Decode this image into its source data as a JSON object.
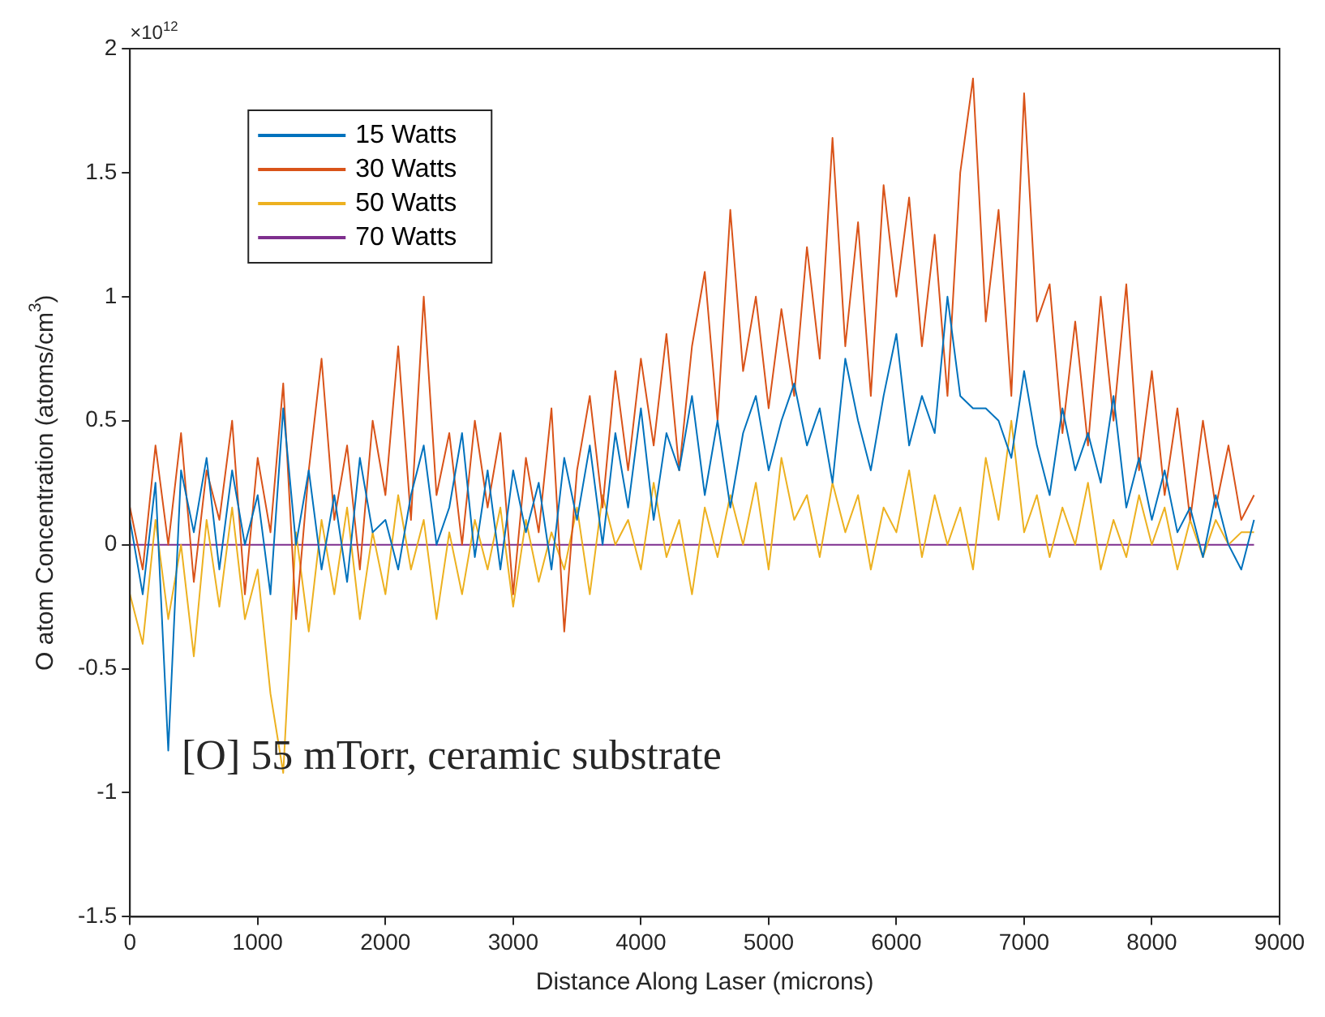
{
  "chart_data": {
    "type": "line",
    "xlabel": "Distance Along Laser (microns)",
    "ylabel": "O atom Concentration (atoms/cm$^{3}$)",
    "annotations": [
      "×10$^{12}$",
      "[O] 55 mTorr, ceramic substrate"
    ],
    "x": [
      0,
      100,
      200,
      300,
      400,
      500,
      600,
      700,
      800,
      900,
      1000,
      1100,
      1200,
      1300,
      1400,
      1500,
      1600,
      1700,
      1800,
      1900,
      2000,
      2100,
      2200,
      2300,
      2400,
      2500,
      2600,
      2700,
      2800,
      2900,
      3000,
      3100,
      3200,
      3300,
      3400,
      3500,
      3600,
      3700,
      3800,
      3900,
      4000,
      4100,
      4200,
      4300,
      4400,
      4500,
      4600,
      4700,
      4800,
      4900,
      5000,
      5100,
      5200,
      5300,
      5400,
      5500,
      5600,
      5700,
      5800,
      5900,
      6000,
      6100,
      6200,
      6300,
      6400,
      6500,
      6600,
      6700,
      6800,
      6900,
      7000,
      7100,
      7200,
      7300,
      7400,
      7500,
      7600,
      7700,
      7800,
      7900,
      8000,
      8100,
      8200,
      8300,
      8400,
      8500,
      8600,
      8700,
      8800
    ],
    "series": [
      {
        "name": "15 Watts",
        "color": "#0072bd",
        "values": [
          0.1,
          -0.2,
          0.25,
          -0.83,
          0.3,
          0.05,
          0.35,
          -0.1,
          0.3,
          0.0,
          0.2,
          -0.2,
          0.55,
          0.0,
          0.3,
          -0.1,
          0.2,
          -0.15,
          0.35,
          0.05,
          0.1,
          -0.1,
          0.2,
          0.4,
          0.0,
          0.15,
          0.45,
          -0.05,
          0.3,
          -0.1,
          0.3,
          0.05,
          0.25,
          -0.1,
          0.35,
          0.1,
          0.4,
          0.0,
          0.45,
          0.15,
          0.55,
          0.1,
          0.45,
          0.3,
          0.6,
          0.2,
          0.5,
          0.15,
          0.45,
          0.6,
          0.3,
          0.5,
          0.65,
          0.4,
          0.55,
          0.25,
          0.75,
          0.5,
          0.3,
          0.6,
          0.85,
          0.4,
          0.6,
          0.45,
          1.0,
          0.6,
          0.55,
          0.55,
          0.5,
          0.35,
          0.7,
          0.4,
          0.2,
          0.55,
          0.3,
          0.45,
          0.25,
          0.6,
          0.15,
          0.35,
          0.1,
          0.3,
          0.05,
          0.15,
          -0.05,
          0.2,
          0.0,
          -0.1,
          0.1
        ]
      },
      {
        "name": "30 Watts",
        "color": "#d95319",
        "values": [
          0.15,
          -0.1,
          0.4,
          0.0,
          0.45,
          -0.15,
          0.3,
          0.1,
          0.5,
          -0.2,
          0.35,
          0.05,
          0.65,
          -0.3,
          0.3,
          0.75,
          0.1,
          0.4,
          -0.1,
          0.5,
          0.2,
          0.8,
          0.1,
          1.0,
          0.2,
          0.45,
          0.0,
          0.5,
          0.15,
          0.45,
          -0.2,
          0.35,
          0.05,
          0.55,
          -0.35,
          0.3,
          0.6,
          0.15,
          0.7,
          0.3,
          0.75,
          0.4,
          0.85,
          0.3,
          0.8,
          1.1,
          0.5,
          1.35,
          0.7,
          1.0,
          0.55,
          0.95,
          0.6,
          1.2,
          0.75,
          1.64,
          0.8,
          1.3,
          0.6,
          1.45,
          1.0,
          1.4,
          0.8,
          1.25,
          0.6,
          1.5,
          1.88,
          0.9,
          1.35,
          0.6,
          1.82,
          0.9,
          1.05,
          0.45,
          0.9,
          0.4,
          1.0,
          0.5,
          1.05,
          0.3,
          0.7,
          0.2,
          0.55,
          0.1,
          0.5,
          0.15,
          0.4,
          0.1,
          0.2
        ]
      },
      {
        "name": "50 Watts",
        "color": "#edb120",
        "values": [
          -0.2,
          -0.4,
          0.1,
          -0.3,
          0.0,
          -0.45,
          0.1,
          -0.25,
          0.15,
          -0.3,
          -0.1,
          -0.6,
          -0.92,
          0.05,
          -0.35,
          0.1,
          -0.2,
          0.15,
          -0.3,
          0.05,
          -0.2,
          0.2,
          -0.1,
          0.1,
          -0.3,
          0.05,
          -0.2,
          0.1,
          -0.1,
          0.15,
          -0.25,
          0.1,
          -0.15,
          0.05,
          -0.1,
          0.15,
          -0.2,
          0.2,
          0.0,
          0.1,
          -0.1,
          0.25,
          -0.05,
          0.1,
          -0.2,
          0.15,
          -0.05,
          0.2,
          0.0,
          0.25,
          -0.1,
          0.35,
          0.1,
          0.2,
          -0.05,
          0.25,
          0.05,
          0.2,
          -0.1,
          0.15,
          0.05,
          0.3,
          -0.05,
          0.2,
          0.0,
          0.15,
          -0.1,
          0.35,
          0.1,
          0.5,
          0.05,
          0.2,
          -0.05,
          0.15,
          0.0,
          0.25,
          -0.1,
          0.1,
          -0.05,
          0.2,
          0.0,
          0.15,
          -0.1,
          0.1,
          -0.05,
          0.1,
          0.0,
          0.05,
          0.05
        ]
      },
      {
        "name": "70 Watts",
        "color": "#7e2f8e",
        "values": [
          0,
          0,
          0,
          0,
          0,
          0,
          0,
          0,
          0,
          0,
          0,
          0,
          0,
          0,
          0,
          0,
          0,
          0,
          0,
          0,
          0,
          0,
          0,
          0,
          0,
          0,
          0,
          0,
          0,
          0,
          0,
          0,
          0,
          0,
          0,
          0,
          0,
          0,
          0,
          0,
          0,
          0,
          0,
          0,
          0,
          0,
          0,
          0,
          0,
          0,
          0,
          0,
          0,
          0,
          0,
          0,
          0,
          0,
          0,
          0,
          0,
          0,
          0,
          0,
          0,
          0,
          0,
          0,
          0,
          0,
          0,
          0,
          0,
          0,
          0,
          0,
          0,
          0,
          0,
          0,
          0,
          0,
          0,
          0,
          0,
          0,
          0,
          0,
          0
        ]
      }
    ],
    "xlim": [
      0,
      9000
    ],
    "xticks": [
      0,
      1000,
      2000,
      3000,
      4000,
      5000,
      6000,
      7000,
      8000,
      9000
    ],
    "ylim": [
      -1.5,
      2
    ],
    "yticks": [
      -1.5,
      -1,
      -0.5,
      0,
      0.5,
      1,
      1.5,
      2
    ],
    "legend": "top left",
    "grid": false,
    "line_style": "solid",
    "marker": "none"
  }
}
